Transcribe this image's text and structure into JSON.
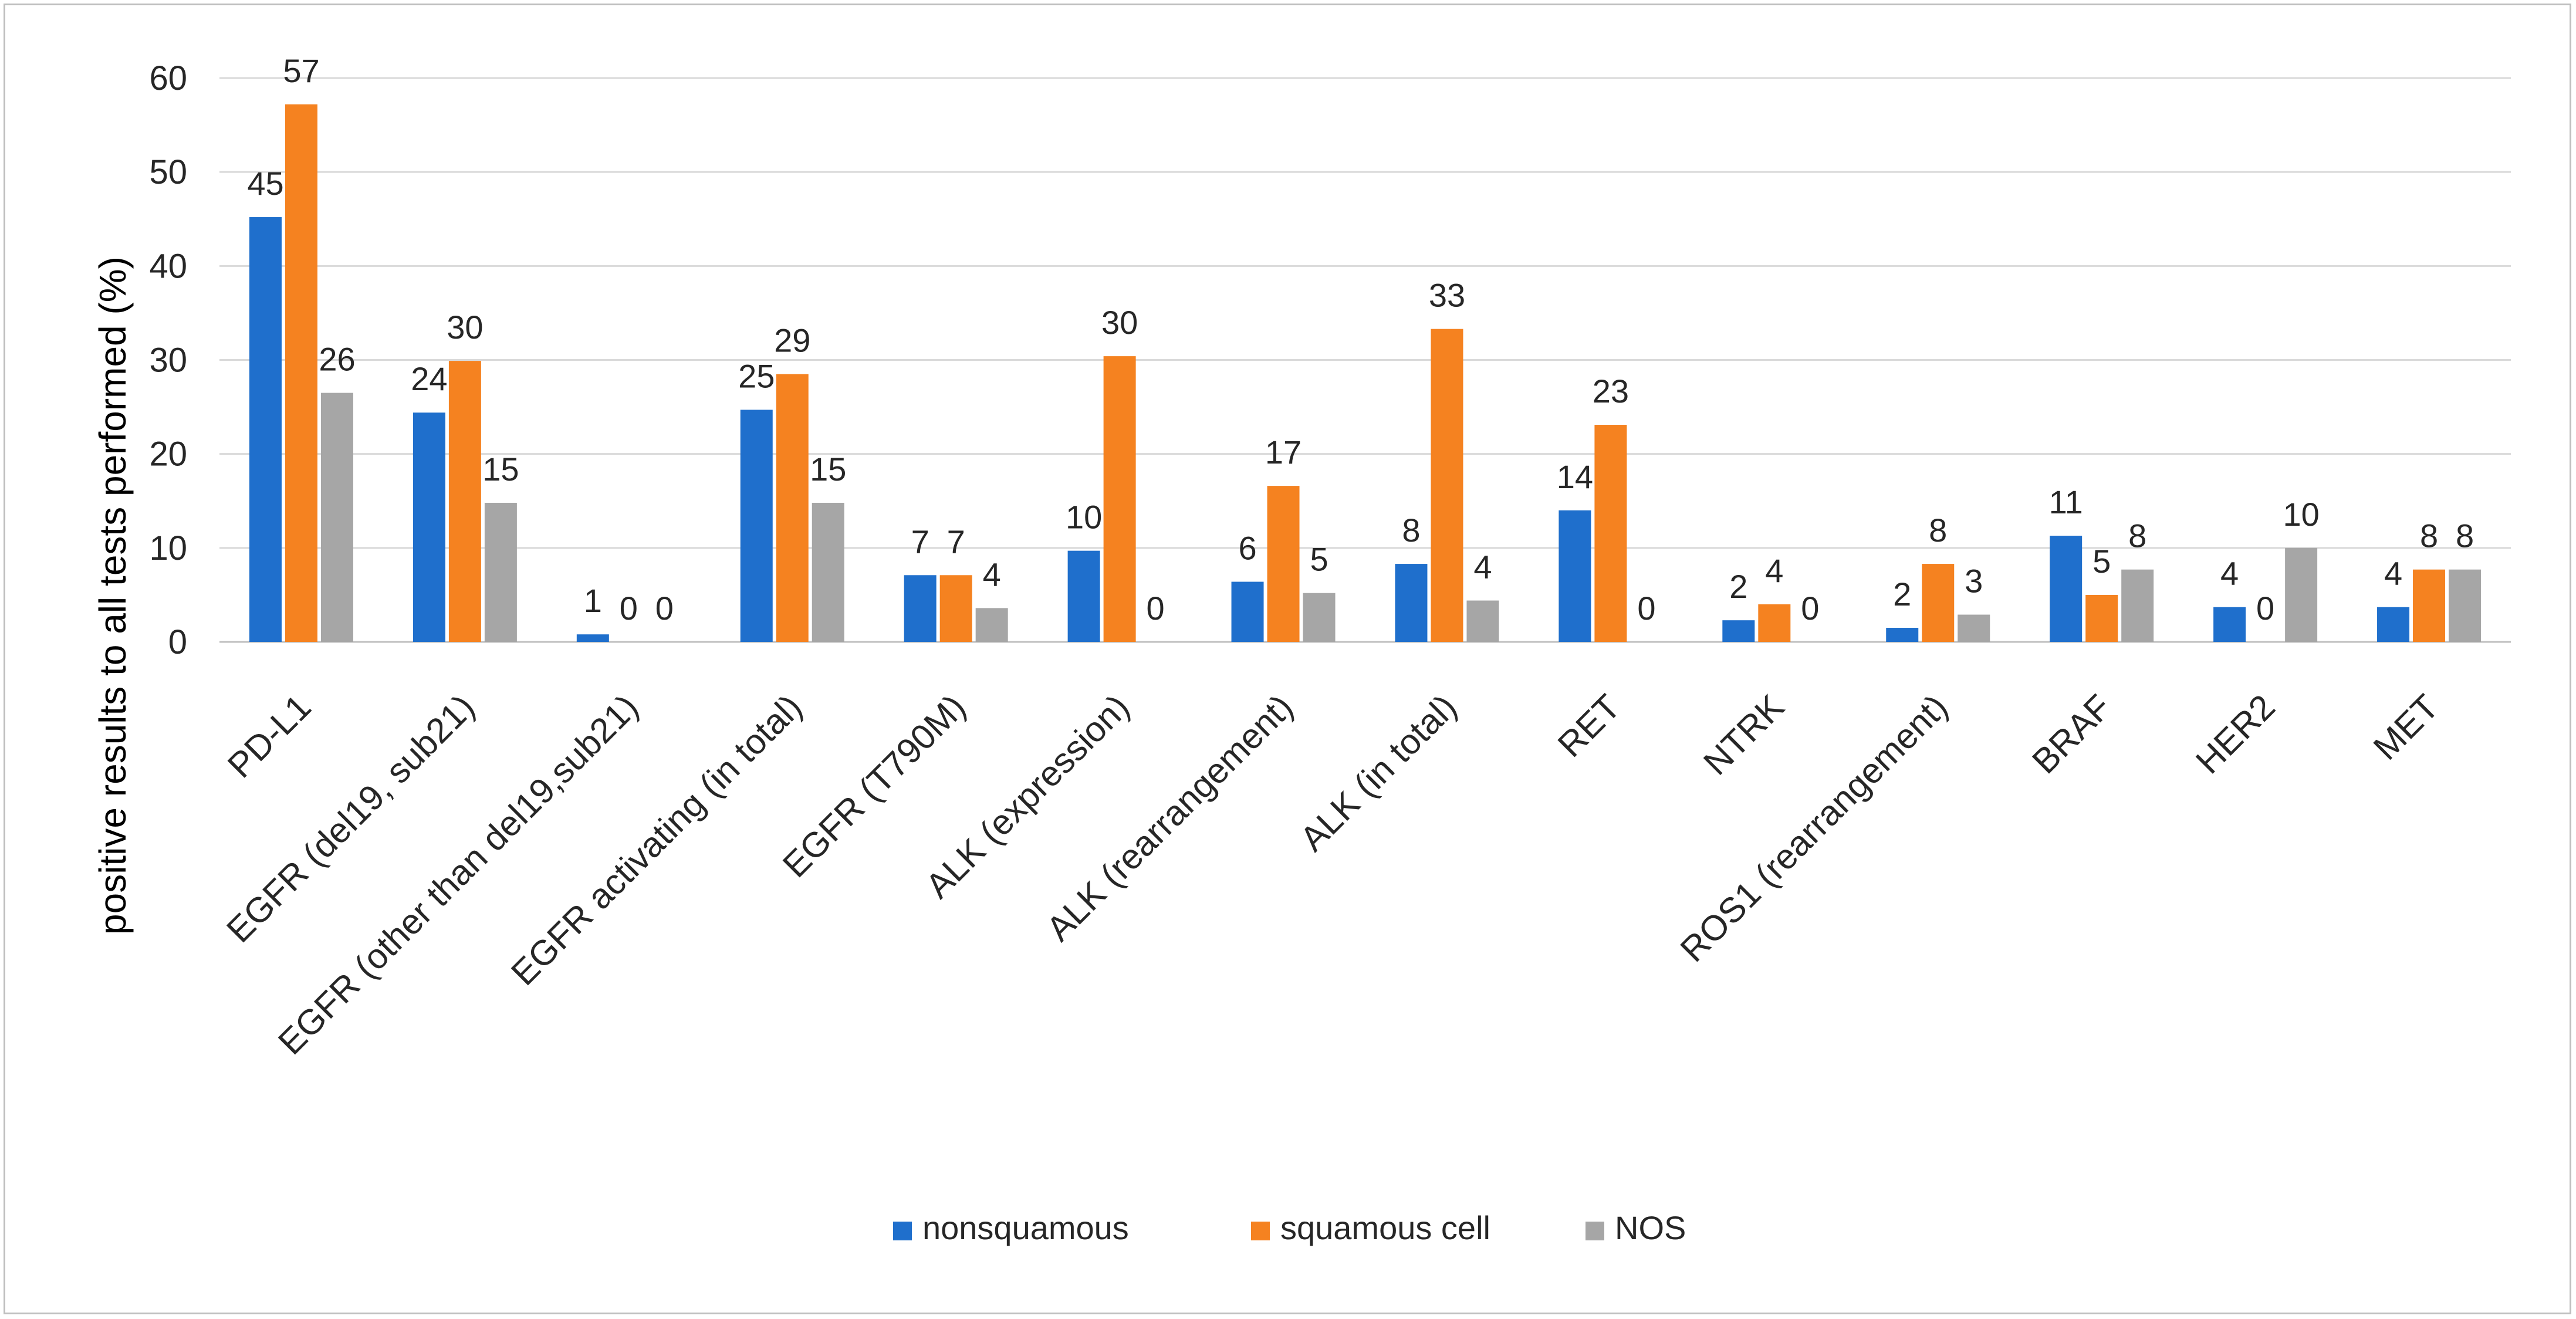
{
  "chart_data": {
    "type": "bar",
    "title": "",
    "xlabel": "",
    "ylabel": "positive results to all tests performed (%)",
    "ylim": [
      0,
      60
    ],
    "yticks": [
      0,
      10,
      20,
      30,
      40,
      50,
      60
    ],
    "grid": true,
    "legend_position": "bottom",
    "categories": [
      "PD-L1",
      "EGFR (del19, sub21)",
      "EGFR (other than del19,sub21)",
      "EGFR activating (in total)",
      "EGFR (T790M)",
      "ALK (expression)",
      "ALK (rearrangement)",
      "ALK (in total)",
      "RET",
      "NTRK",
      "ROS1 (rearrangement)",
      "BRAF",
      "HER2",
      "MET"
    ],
    "series": [
      {
        "name": "nonsquamous",
        "color": "#1f6fcc",
        "values": [
          45.2,
          24.4,
          0.8,
          24.7,
          7.1,
          9.7,
          6.4,
          8.3,
          14.0,
          2.3,
          1.5,
          11.3,
          3.7,
          3.7
        ],
        "labels": [
          "45",
          "24",
          "1",
          "25",
          "7",
          "10",
          "6",
          "8",
          "14",
          "2",
          "2",
          "11",
          "4",
          "4"
        ]
      },
      {
        "name": "squamous cell",
        "color": "#f58220",
        "values": [
          57.2,
          29.9,
          0,
          28.5,
          7.1,
          30.4,
          16.6,
          33.3,
          23.1,
          4.0,
          8.3,
          5.0,
          0,
          7.7
        ],
        "labels": [
          "57",
          "30",
          "0",
          "29",
          "7",
          "30",
          "17",
          "33",
          "23",
          "4",
          "8",
          "5",
          "0",
          "8"
        ]
      },
      {
        "name": "NOS",
        "color": "#a6a6a6",
        "values": [
          26.5,
          14.8,
          0,
          14.8,
          3.6,
          0,
          5.2,
          4.4,
          0,
          0,
          2.9,
          7.7,
          10.0,
          7.7
        ],
        "labels": [
          "26",
          "15",
          "0",
          "15",
          "4",
          "0",
          "5",
          "4",
          "0",
          "0",
          "3",
          "8",
          "10",
          "8"
        ]
      }
    ]
  }
}
